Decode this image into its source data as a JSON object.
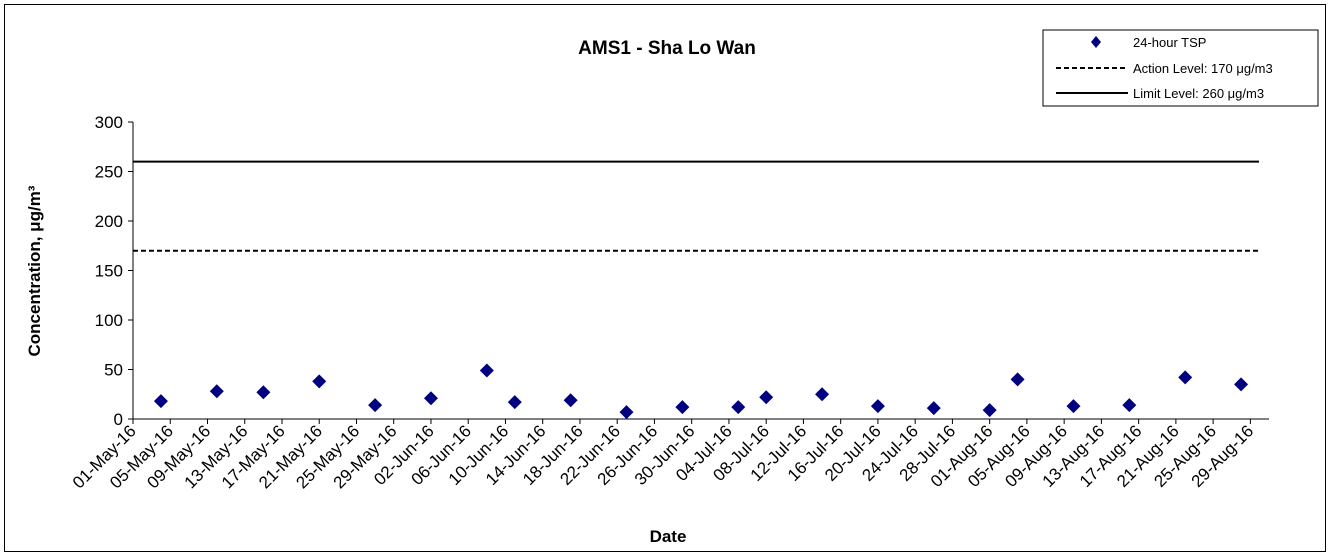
{
  "chart_data": {
    "type": "scatter",
    "title": "AMS1 - Sha Lo Wan",
    "xlabel": "Date",
    "ylabel": "Concentration, μg/m³",
    "ylim": [
      0,
      300
    ],
    "yticks": [
      0,
      50,
      100,
      150,
      200,
      250,
      300
    ],
    "xlim": [
      "2016-05-01",
      "2016-08-31"
    ],
    "xtick_labels": [
      "01-May-16",
      "05-May-16",
      "09-May-16",
      "13-May-16",
      "17-May-16",
      "21-May-16",
      "25-May-16",
      "29-May-16",
      "02-Jun-16",
      "06-Jun-16",
      "10-Jun-16",
      "14-Jun-16",
      "18-Jun-16",
      "22-Jun-16",
      "26-Jun-16",
      "30-Jun-16",
      "04-Jul-16",
      "08-Jul-16",
      "12-Jul-16",
      "16-Jul-16",
      "20-Jul-16",
      "24-Jul-16",
      "28-Jul-16",
      "01-Aug-16",
      "05-Aug-16",
      "09-Aug-16",
      "13-Aug-16",
      "17-Aug-16",
      "21-Aug-16",
      "25-Aug-16",
      "29-Aug-16"
    ],
    "grid": false,
    "legend_position": "top-right",
    "series": [
      {
        "name": "24-hour TSP",
        "marker": "diamond",
        "color": "#000080",
        "x": [
          "2016-05-04",
          "2016-05-10",
          "2016-05-15",
          "2016-05-21",
          "2016-05-27",
          "2016-06-02",
          "2016-06-08",
          "2016-06-11",
          "2016-06-17",
          "2016-06-23",
          "2016-06-29",
          "2016-07-05",
          "2016-07-08",
          "2016-07-14",
          "2016-07-20",
          "2016-07-26",
          "2016-08-01",
          "2016-08-04",
          "2016-08-10",
          "2016-08-16",
          "2016-08-22",
          "2016-08-28"
        ],
        "y": [
          18,
          28,
          27,
          38,
          14,
          21,
          49,
          17,
          19,
          7,
          12,
          12,
          22,
          25,
          13,
          11,
          9,
          40,
          13,
          14,
          42,
          35
        ]
      },
      {
        "name": "Action Level: 170 μg/m3",
        "type": "hline",
        "value": 170,
        "style": "dashed",
        "color": "#000000"
      },
      {
        "name": "Limit Level: 260 μg/m3",
        "type": "hline",
        "value": 260,
        "style": "solid",
        "color": "#000000"
      }
    ]
  }
}
